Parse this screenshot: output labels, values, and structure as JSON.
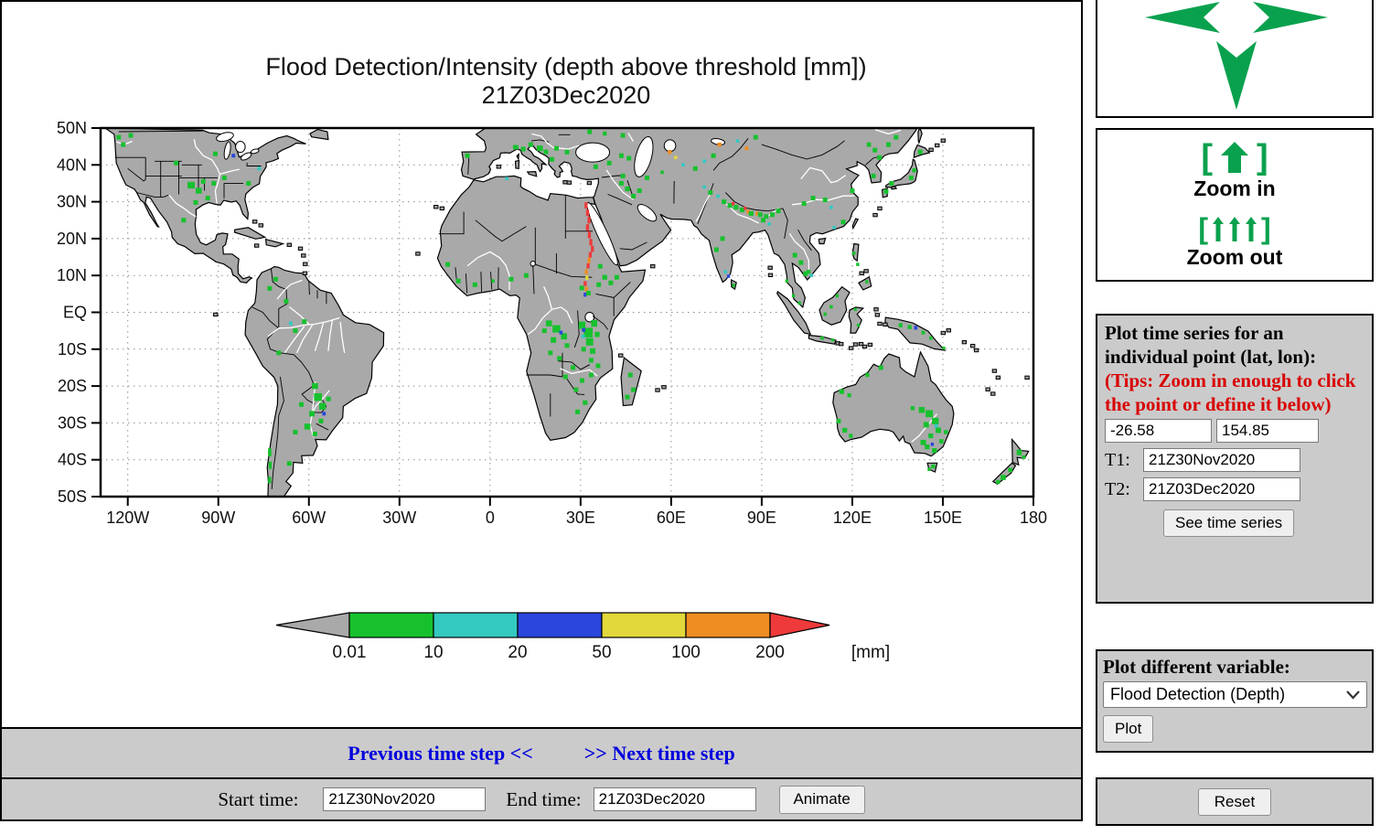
{
  "accent": {
    "green": "#0aa14e",
    "link_blue": "#0000dd",
    "tips_red": "#d90000",
    "panel_gray": "#cbcbcb"
  },
  "map": {
    "title_line1": "Flood Detection/Intensity (depth above threshold [mm])",
    "title_line2": "21Z03Dec2020",
    "lat_labels": [
      "50N",
      "40N",
      "30N",
      "20N",
      "10N",
      "EQ",
      "10S",
      "20S",
      "30S",
      "40S",
      "50S"
    ],
    "lon_labels": [
      "120W",
      "90W",
      "60W",
      "30W",
      "0",
      "30E",
      "60E",
      "90E",
      "120E",
      "150E",
      "180"
    ],
    "land_color": "#a9a9a9",
    "colorbar": {
      "tick_labels": [
        "0.01",
        "10",
        "20",
        "50",
        "100",
        "200"
      ],
      "unit_label": "[mm]",
      "colors": [
        "#a9a9a9",
        "#17c12e",
        "#33c9c0",
        "#2a46dd",
        "#e2d83b",
        "#ee8d22",
        "#ee3a3a"
      ]
    },
    "flood_marks": [
      [
        -123,
        47.5,
        1
      ],
      [
        -121.5,
        45.5,
        1
      ],
      [
        -119,
        48,
        1
      ],
      [
        -99,
        34.5,
        1,
        2.4,
        1.8
      ],
      [
        -96.5,
        33,
        1,
        2,
        1.6
      ],
      [
        -95,
        35.5,
        1
      ],
      [
        -93.5,
        31,
        1
      ],
      [
        -97.5,
        29.8,
        1
      ],
      [
        -91.5,
        35,
        1
      ],
      [
        -88,
        36.5,
        1
      ],
      [
        -85,
        42.5,
        3,
        1.2,
        1
      ],
      [
        -80,
        35,
        1
      ],
      [
        -76.5,
        39,
        2,
        1.2,
        1
      ],
      [
        -91,
        43,
        1
      ],
      [
        -101.5,
        25,
        1
      ],
      [
        -104,
        40.5,
        1
      ],
      [
        -73,
        6.5,
        1
      ],
      [
        -71,
        9,
        1
      ],
      [
        -67.5,
        3,
        1
      ],
      [
        -66,
        -3,
        2,
        1.2,
        1
      ],
      [
        -64.5,
        -5,
        1
      ],
      [
        -61.5,
        -2.5,
        1
      ],
      [
        -70,
        -11,
        1
      ],
      [
        -58,
        -20,
        1,
        2,
        1.6
      ],
      [
        -57,
        -23,
        1,
        2.6,
        2.1
      ],
      [
        -55.5,
        -25.5,
        1,
        2.2,
        1.8
      ],
      [
        -53.5,
        -23.5,
        1
      ],
      [
        -59,
        -27.5,
        1,
        1.8,
        1.5
      ],
      [
        -60.5,
        -31,
        1,
        2,
        1.6
      ],
      [
        -58,
        -33,
        1
      ],
      [
        -56,
        -29.5,
        1
      ],
      [
        -55,
        -27.5,
        3,
        1.1,
        1
      ],
      [
        -62.5,
        -25,
        1
      ],
      [
        -64.5,
        -32.5,
        1
      ],
      [
        -73,
        -38,
        1,
        1.1,
        2.2
      ],
      [
        -72.8,
        -41.5,
        1,
        1,
        2
      ],
      [
        -73,
        -45.5,
        1,
        1,
        1.8
      ],
      [
        -66.5,
        -41,
        1
      ],
      [
        -7.5,
        42.5,
        1
      ],
      [
        8.5,
        44.8,
        1,
        1.8,
        1.2
      ],
      [
        11,
        44.3,
        1
      ],
      [
        13.5,
        45.5,
        1
      ],
      [
        16.5,
        44.5,
        1,
        2,
        1.5
      ],
      [
        18.5,
        43.5,
        1
      ],
      [
        20.5,
        41.5,
        1
      ],
      [
        22,
        44.5,
        1
      ],
      [
        25.5,
        43.5,
        1
      ],
      [
        5.5,
        36.3,
        2,
        1.1,
        0.9
      ],
      [
        35,
        39.5,
        1
      ],
      [
        39.5,
        40.5,
        1
      ],
      [
        43.5,
        42.5,
        1
      ],
      [
        46,
        41.8,
        1
      ],
      [
        31.8,
        29,
        6,
        1,
        1.7
      ],
      [
        32.3,
        27,
        6,
        1,
        1.8
      ],
      [
        32.8,
        25,
        6,
        1,
        1.8
      ],
      [
        32.3,
        23,
        6,
        1,
        1.8
      ],
      [
        32.9,
        21,
        6,
        1,
        1.8
      ],
      [
        33.4,
        19,
        6,
        1,
        1.8
      ],
      [
        33.9,
        17.2,
        6,
        1,
        1.6
      ],
      [
        33.2,
        15.6,
        6,
        1,
        1.5
      ],
      [
        32.8,
        14.1,
        5,
        1,
        1.5
      ],
      [
        32.5,
        12.6,
        6,
        1,
        1.4
      ],
      [
        31.9,
        11,
        5,
        1,
        1.4
      ],
      [
        32.1,
        9.4,
        4,
        1,
        1.2
      ],
      [
        31.5,
        7.8,
        6,
        1,
        1.3
      ],
      [
        31.9,
        6.3,
        5,
        1,
        1.3
      ],
      [
        31.5,
        4.8,
        3,
        1,
        1.1
      ],
      [
        32.6,
        5.2,
        1
      ],
      [
        30.4,
        6.6,
        1
      ],
      [
        36.5,
        12.5,
        1
      ],
      [
        38,
        9.5,
        1,
        1.6,
        1.3
      ],
      [
        40,
        8,
        1
      ],
      [
        42,
        9.5,
        1
      ],
      [
        36,
        7.5,
        1
      ],
      [
        30.5,
        -3.5,
        1,
        2.2,
        2
      ],
      [
        32.5,
        -5.5,
        1,
        3,
        2.6
      ],
      [
        34.5,
        -3,
        1,
        2,
        1.8
      ],
      [
        33,
        -8,
        1,
        2.4,
        2
      ],
      [
        30.8,
        -6.5,
        2,
        1.2,
        1
      ],
      [
        31,
        -4.8,
        3,
        1.1,
        1
      ],
      [
        35.5,
        -6,
        1,
        1.6,
        1.4
      ],
      [
        34,
        -10.5,
        1,
        1.8,
        1.5
      ],
      [
        31,
        -10,
        1
      ],
      [
        33.5,
        -13,
        1
      ],
      [
        35.8,
        -14.5,
        1
      ],
      [
        19.5,
        -3,
        1,
        2,
        1.6
      ],
      [
        22,
        -4.5,
        1,
        2.6,
        2
      ],
      [
        24.5,
        -6.5,
        1,
        2,
        1.7
      ],
      [
        21,
        -7.5,
        1,
        1.8,
        1.5
      ],
      [
        18,
        -5,
        1
      ],
      [
        23.5,
        -5.5,
        3,
        1.1,
        1
      ],
      [
        25.5,
        -9,
        1
      ],
      [
        20,
        -11,
        1
      ],
      [
        23,
        -12.5,
        1
      ],
      [
        27.5,
        -15,
        1
      ],
      [
        25,
        -17.5,
        1
      ],
      [
        30.5,
        -18.5,
        1
      ],
      [
        33.5,
        -17,
        1
      ],
      [
        28.5,
        -21,
        1
      ],
      [
        31.5,
        -24.5,
        1
      ],
      [
        29,
        -27,
        1
      ],
      [
        46.5,
        -17,
        1
      ],
      [
        47.5,
        -21,
        1
      ],
      [
        45.5,
        -23,
        1
      ],
      [
        -5,
        7.5,
        1
      ],
      [
        -10.5,
        8.5,
        1
      ],
      [
        -14,
        13,
        1
      ],
      [
        1,
        8.5,
        1,
        1.1,
        0.9
      ],
      [
        7,
        9,
        1
      ],
      [
        12,
        10,
        1
      ],
      [
        43.5,
        35,
        1
      ],
      [
        45.5,
        33.5,
        1,
        1.6,
        1.3
      ],
      [
        47.5,
        31.5,
        1
      ],
      [
        44,
        37,
        1
      ],
      [
        49.5,
        33,
        1
      ],
      [
        52,
        36.5,
        1
      ],
      [
        59.5,
        43.5,
        5,
        1.3,
        1.1
      ],
      [
        61.5,
        42,
        4,
        1.1,
        0.9
      ],
      [
        64,
        40,
        2,
        1.1,
        0.9
      ],
      [
        57,
        38,
        1,
        1.1,
        0.9
      ],
      [
        68,
        39,
        1
      ],
      [
        71,
        41,
        2,
        1.1,
        0.9
      ],
      [
        74,
        42.5,
        1
      ],
      [
        76,
        45.5,
        5,
        1.3,
        1.1
      ],
      [
        85,
        44.5,
        5,
        1.2,
        1
      ],
      [
        82,
        46.5,
        2,
        1.1,
        0.9
      ],
      [
        88,
        47.5,
        1
      ],
      [
        77.5,
        30,
        1
      ],
      [
        79.5,
        29,
        1,
        1.6,
        1.3
      ],
      [
        81.5,
        28.5,
        1,
        1.6,
        1.3
      ],
      [
        83.5,
        27.8,
        1,
        1.6,
        1.3
      ],
      [
        85.5,
        27.3,
        5,
        1.2,
        1
      ],
      [
        86.5,
        26.8,
        1,
        1.6,
        1.3
      ],
      [
        88.5,
        26.8,
        5,
        1.2,
        1
      ],
      [
        89.5,
        26.5,
        1
      ],
      [
        91.5,
        26,
        1
      ],
      [
        80.5,
        29.5,
        6,
        1,
        0.9
      ],
      [
        84.5,
        28.2,
        6,
        1,
        0.9
      ],
      [
        90.5,
        25,
        1
      ],
      [
        92.5,
        24,
        2,
        1.1,
        0.9
      ],
      [
        93.5,
        26.5,
        1
      ],
      [
        95.5,
        27.5,
        1
      ],
      [
        75.5,
        31.5,
        2,
        1.1,
        0.9
      ],
      [
        73,
        32.5,
        1
      ],
      [
        71,
        34,
        2,
        1.1,
        0.9
      ],
      [
        77,
        20,
        1
      ],
      [
        75,
        17,
        1
      ],
      [
        78,
        11,
        2,
        1.1,
        0.9
      ],
      [
        79,
        9.8,
        3,
        1,
        0.9
      ],
      [
        80.7,
        7.3,
        1,
        1,
        0.9
      ],
      [
        104,
        29.5,
        1
      ],
      [
        107,
        31,
        1
      ],
      [
        111,
        30.5,
        1
      ],
      [
        113,
        28.5,
        2,
        1.1,
        0.9
      ],
      [
        114,
        23,
        2,
        1.1,
        0.9
      ],
      [
        117,
        24.5,
        1
      ],
      [
        120,
        33,
        1
      ],
      [
        125.5,
        45.5,
        1,
        1.4,
        1.2
      ],
      [
        127.5,
        44,
        1
      ],
      [
        129,
        42,
        1
      ],
      [
        127,
        37,
        1
      ],
      [
        140.5,
        38.5,
        1,
        1.3,
        1.1
      ],
      [
        139.5,
        36.5,
        1
      ],
      [
        133,
        35,
        1
      ],
      [
        131.2,
        32.8,
        1
      ],
      [
        142.5,
        43.5,
        1
      ],
      [
        101,
        15.5,
        1
      ],
      [
        103,
        13.5,
        1
      ],
      [
        105.5,
        11,
        1,
        1.3,
        1.1
      ],
      [
        106.5,
        10,
        2,
        1.1,
        0.9
      ],
      [
        104.5,
        10.5,
        1
      ],
      [
        98.3,
        8.5,
        1,
        1,
        0.9
      ],
      [
        100.5,
        4.5,
        1,
        1,
        0.9
      ],
      [
        102.5,
        2.5,
        1,
        1,
        0.9
      ],
      [
        113,
        1.5,
        1,
        1.1,
        0.9
      ],
      [
        115,
        4.5,
        1,
        1,
        0.9
      ],
      [
        111,
        -0.5,
        1,
        1,
        0.9
      ],
      [
        121,
        0.8,
        1,
        1,
        0.8
      ],
      [
        122,
        -3.5,
        1,
        1,
        0.8
      ],
      [
        110,
        -7,
        1,
        1.1,
        0.9
      ],
      [
        113.5,
        -7.5,
        1,
        1,
        0.8
      ],
      [
        120.5,
        16,
        1,
        1.1,
        0.9
      ],
      [
        121.8,
        13,
        1,
        1,
        0.9
      ],
      [
        124.8,
        8.3,
        1,
        1,
        0.9
      ],
      [
        136,
        -3.5,
        1,
        1.3,
        1.1
      ],
      [
        139,
        -4,
        1,
        1.3,
        1.1
      ],
      [
        141,
        -4.2,
        3,
        1.1,
        1
      ],
      [
        143.5,
        -5.5,
        1,
        1.2,
        1
      ],
      [
        146,
        -7,
        1,
        1.1,
        0.9
      ],
      [
        150.3,
        -9.7,
        1,
        1,
        0.8
      ],
      [
        116.5,
        -21.5,
        1,
        1.6,
        1.3
      ],
      [
        119,
        -22.5,
        1,
        1.3,
        1.1
      ],
      [
        125,
        -17,
        1,
        1.3,
        1.1
      ],
      [
        129.5,
        -15,
        1
      ],
      [
        115.5,
        -29.5,
        1,
        1.4,
        1.2
      ],
      [
        117.5,
        -32,
        1,
        1.6,
        1.3
      ],
      [
        119.5,
        -33.5,
        1,
        1.3,
        1.1
      ],
      [
        140,
        -26,
        1,
        1.3,
        1.1
      ],
      [
        143,
        -26.5,
        1,
        2,
        1.6
      ],
      [
        145.5,
        -27.5,
        1,
        2.4,
        1.9
      ],
      [
        147.5,
        -29.5,
        1,
        2.2,
        1.8
      ],
      [
        144.5,
        -30.5,
        1,
        1.8,
        1.5
      ],
      [
        148.5,
        -32,
        1,
        1.8,
        1.5
      ],
      [
        147.8,
        -30.8,
        2,
        1.2,
        1
      ],
      [
        146,
        -33.5,
        1,
        1.6,
        1.3
      ],
      [
        143.5,
        -35.3,
        1,
        1.8,
        1.4
      ],
      [
        144.8,
        -36.5,
        1,
        1.6,
        1.3
      ],
      [
        146.5,
        -35.8,
        3,
        1,
        0.9
      ],
      [
        147.2,
        -37.5,
        1,
        1.6,
        1.3
      ],
      [
        149.5,
        -35,
        1,
        1.4,
        1.2
      ],
      [
        151,
        -32.5,
        1,
        1.3,
        1.1
      ],
      [
        146.8,
        -41.8,
        1,
        1.3,
        1.1
      ],
      [
        145.5,
        -42.6,
        1,
        1.1,
        0.9
      ],
      [
        175.3,
        -38,
        1,
        1.7,
        1.5
      ],
      [
        176.8,
        -39.3,
        1,
        1.2,
        1
      ],
      [
        172.3,
        -42.8,
        1,
        1.4,
        1.2
      ],
      [
        170,
        -44.8,
        1,
        1.7,
        1.4
      ],
      [
        168.3,
        -46,
        1,
        1.3,
        1.1
      ],
      [
        38,
        48.5,
        1,
        1.3,
        1.1
      ],
      [
        33,
        49,
        1
      ],
      [
        44,
        48,
        1
      ],
      [
        132,
        45.5,
        1
      ],
      [
        134.5,
        47.5,
        1
      ]
    ]
  },
  "pan_panel": {},
  "zoom_panel": {
    "bracket_left": "[",
    "bracket_right": "]",
    "zoom_in_label": "Zoom in",
    "zoom_out_label": "Zoom out"
  },
  "timeseries_panel": {
    "heading": "Plot time series for an individual point (lat, lon):",
    "tips": "(Tips: Zoom in enough to click the point or define it below)",
    "lat_value": "-26.58",
    "lon_value": "154.85",
    "t1_label": "T1:",
    "t1_value": "21Z30Nov2020",
    "t2_label": "T2:",
    "t2_value": "21Z03Dec2020",
    "see_button_label": "See time series"
  },
  "variable_panel": {
    "heading": "Plot different variable:",
    "selected_option": "Flood Detection (Depth)",
    "plot_button_label": "Plot"
  },
  "reset_panel": {
    "reset_button_label": "Reset"
  },
  "time_nav": {
    "previous_label": "Previous time step <<",
    "next_label": ">> Next time step"
  },
  "time_controls": {
    "start_label": "Start time:",
    "start_value": "21Z30Nov2020",
    "end_label": "End time:",
    "end_value": "21Z03Dec2020",
    "animate_label": "Animate"
  }
}
